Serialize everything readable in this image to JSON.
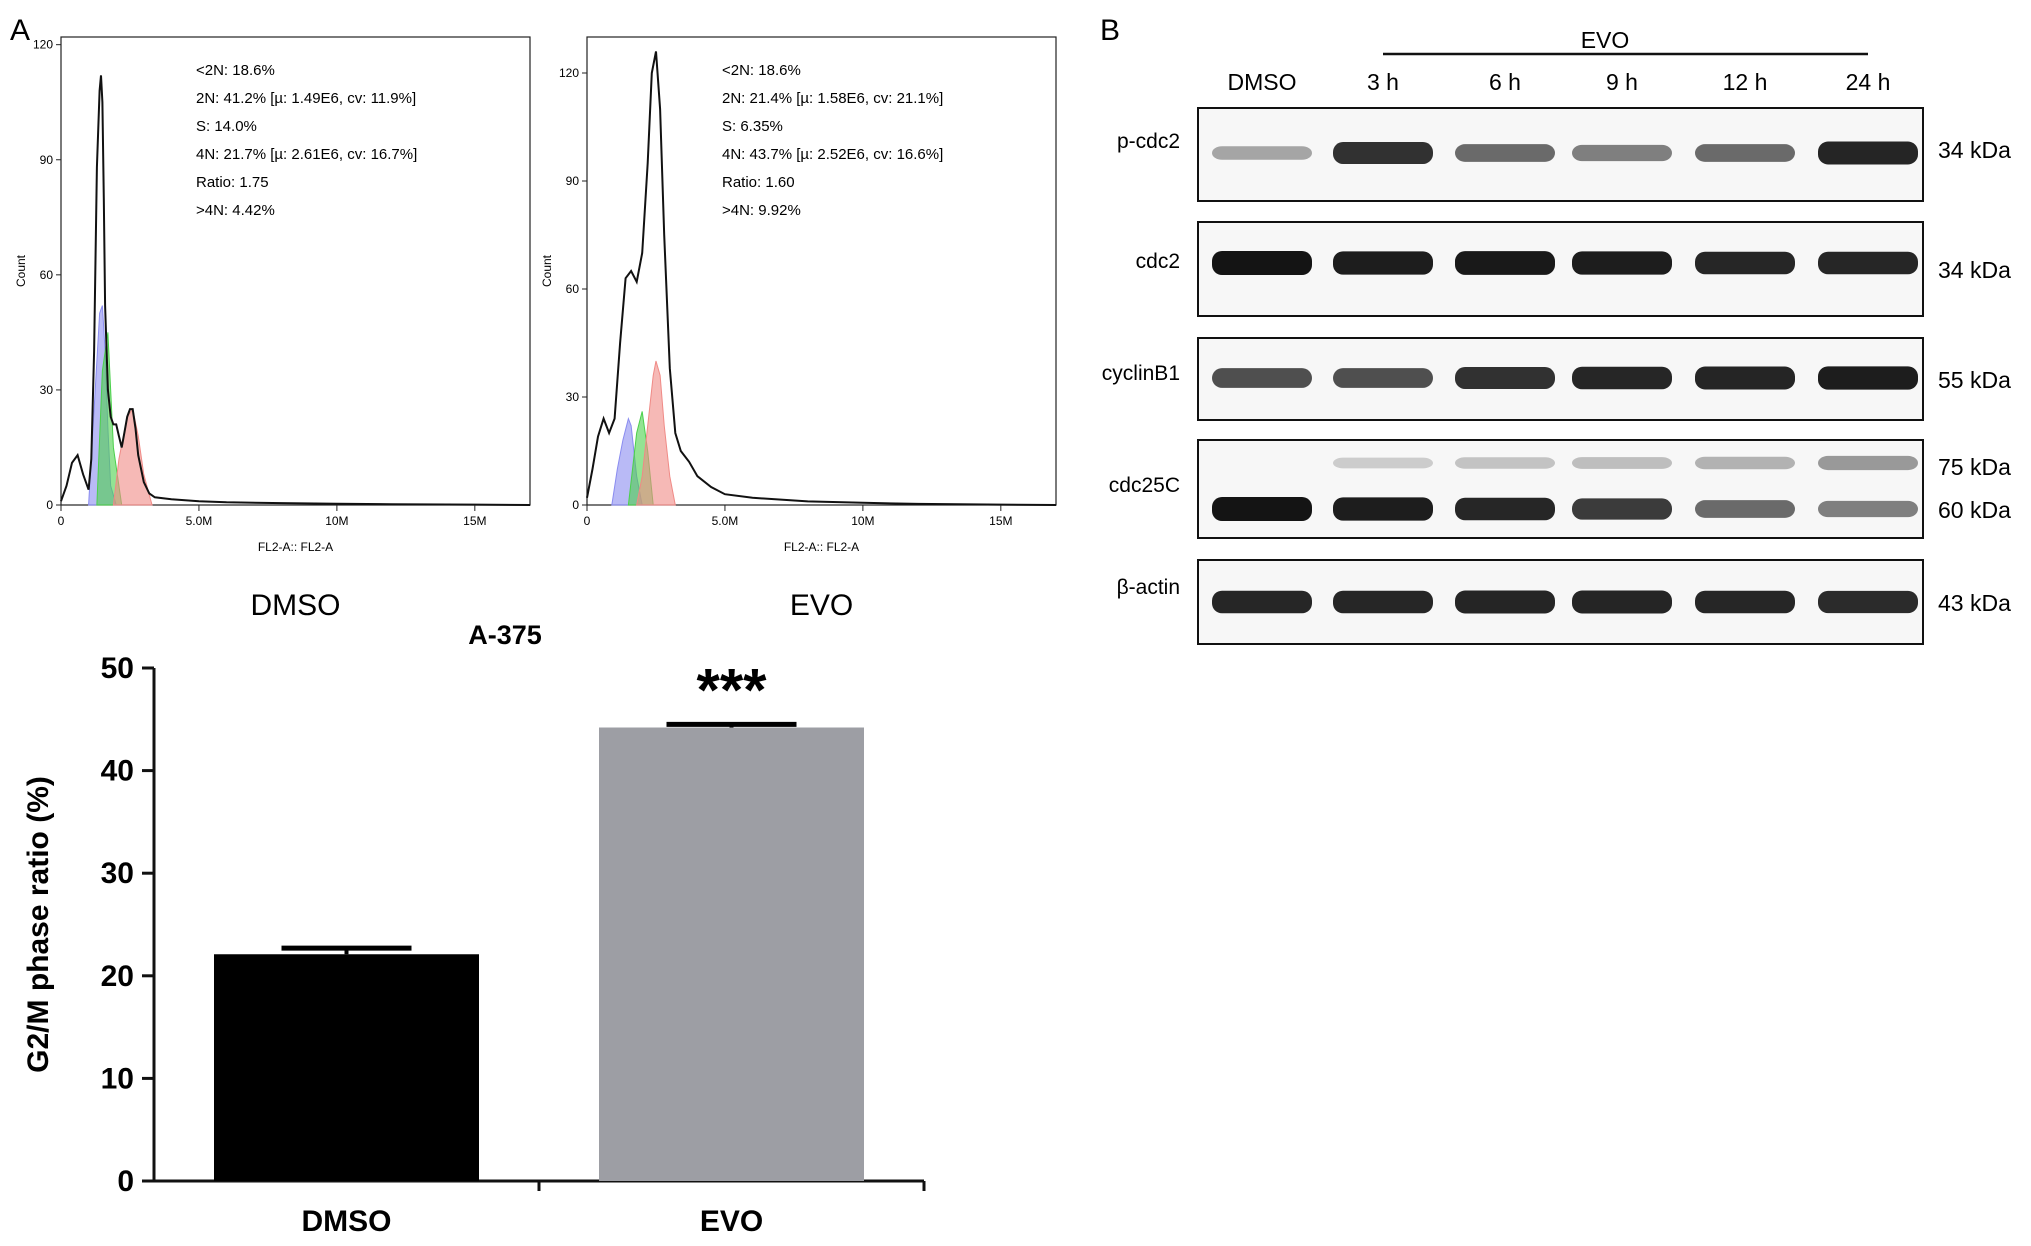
{
  "panel_labels": {
    "a": "A",
    "b": "B"
  },
  "colors": {
    "g1": "#8a8cf0",
    "s": "#4bd04b",
    "g2m": "#f08a86",
    "evo_bar": "#9d9ea4",
    "dmso_bar": "#000000"
  },
  "chart_data": [
    {
      "type": "area",
      "id": "hist-dmso",
      "caption": "DMSO",
      "xlabel": "FL2-A:: FL2-A",
      "ylabel": "Count",
      "xlim": [
        0,
        17000000
      ],
      "ylim": [
        0,
        122
      ],
      "x_ticks": [
        "0",
        "5.0M",
        "10M",
        "15M"
      ],
      "y_ticks": [
        "0",
        "30",
        "60",
        "90",
        "120"
      ],
      "stats": [
        "<2N: 18.6%",
        "2N: 41.2%   [µ: 1.49E6, cv: 11.9%]",
        "S: 14.0%",
        "4N: 21.7%   [µ: 2.61E6, cv: 16.7%]",
        "Ratio: 1.75",
        ">4N: 4.42%"
      ],
      "total": {
        "x": [
          0,
          200000,
          400000,
          600000,
          800000,
          1000000,
          1100000,
          1200000,
          1300000,
          1400000,
          1450000,
          1500000,
          1550000,
          1600000,
          1700000,
          1800000,
          1900000,
          2000000,
          2100000,
          2200000,
          2300000,
          2400000,
          2500000,
          2600000,
          2700000,
          2800000,
          3000000,
          3200000,
          3400000,
          4000000,
          5000000,
          6000000,
          8000000,
          10000000,
          12000000,
          15000000,
          17000000
        ],
        "y": [
          1,
          5,
          11,
          13,
          8,
          4,
          12,
          40,
          88,
          108,
          112,
          105,
          80,
          52,
          30,
          23,
          21,
          21,
          18,
          15,
          19,
          23,
          25,
          25,
          20,
          13,
          6,
          3,
          2,
          1.5,
          1,
          0.7,
          0.5,
          0.3,
          0.2,
          0.1,
          0
        ]
      },
      "components": [
        {
          "phase": "G1",
          "x": [
            1000000,
            1200000,
            1400000,
            1500000,
            1600000,
            1700000,
            1800000,
            2000000
          ],
          "y": [
            0,
            25,
            50,
            52,
            40,
            20,
            5,
            0
          ]
        },
        {
          "phase": "S",
          "x": [
            1300000,
            1500000,
            1700000,
            1900000,
            2000000,
            2200000
          ],
          "y": [
            0,
            35,
            45,
            15,
            10,
            0
          ]
        },
        {
          "phase": "G2/M",
          "x": [
            1900000,
            2100000,
            2400000,
            2600000,
            2800000,
            3000000,
            3300000
          ],
          "y": [
            0,
            12,
            23,
            25,
            18,
            8,
            0
          ]
        }
      ]
    },
    {
      "type": "area",
      "id": "hist-evo",
      "caption": "EVO",
      "xlabel": "FL2-A:: FL2-A",
      "ylabel": "Count",
      "xlim": [
        0,
        17000000
      ],
      "ylim": [
        0,
        130
      ],
      "x_ticks": [
        "0",
        "5.0M",
        "10M",
        "15M"
      ],
      "y_ticks": [
        "0",
        "30",
        "60",
        "90",
        "120"
      ],
      "stats": [
        "<2N: 18.6%",
        "2N: 21.4%   [µ: 1.58E6, cv: 21.1%]",
        "S: 6.35%",
        "4N: 43.7%   [µ: 2.52E6, cv: 16.6%]",
        "Ratio: 1.60",
        ">4N: 9.92%"
      ],
      "total": {
        "x": [
          0,
          200000,
          400000,
          600000,
          800000,
          1000000,
          1200000,
          1400000,
          1600000,
          1800000,
          2000000,
          2200000,
          2350000,
          2500000,
          2650000,
          2800000,
          3000000,
          3200000,
          3400000,
          3700000,
          4000000,
          4500000,
          5000000,
          6000000,
          8000000,
          10000000,
          12000000,
          15000000,
          17000000
        ],
        "y": [
          2,
          10,
          19,
          24,
          20,
          24,
          45,
          63,
          65,
          62,
          70,
          95,
          120,
          126,
          110,
          75,
          38,
          20,
          15,
          12,
          8,
          5,
          3,
          2,
          1,
          0.6,
          0.3,
          0.1,
          0
        ]
      },
      "components": [
        {
          "phase": "G1",
          "x": [
            900000,
            1100000,
            1300000,
            1500000,
            1600000,
            1800000,
            2000000
          ],
          "y": [
            0,
            10,
            18,
            24,
            22,
            8,
            0
          ]
        },
        {
          "phase": "S",
          "x": [
            1500000,
            1800000,
            2000000,
            2200000,
            2400000
          ],
          "y": [
            0,
            20,
            26,
            15,
            0
          ]
        },
        {
          "phase": "G2/M",
          "x": [
            1800000,
            2000000,
            2200000,
            2400000,
            2500000,
            2650000,
            2800000,
            3000000,
            3200000
          ],
          "y": [
            0,
            8,
            22,
            36,
            40,
            36,
            22,
            8,
            0
          ]
        }
      ]
    },
    {
      "type": "bar",
      "id": "bar-g2m",
      "title": "A-375",
      "ylabel": "G2/M phase ratio (%)",
      "categories": [
        "DMSO",
        "EVO"
      ],
      "values": [
        22.1,
        44.2
      ],
      "errors": [
        0.6,
        0.3
      ],
      "ylim": [
        0,
        50
      ],
      "y_ticks": [
        "0",
        "10",
        "20",
        "30",
        "40",
        "50"
      ],
      "annotation": "***"
    }
  ],
  "western_blot": {
    "group_label": "EVO",
    "lanes": [
      "DMSO",
      "3 h",
      "6 h",
      "9 h",
      "12 h",
      "24 h"
    ],
    "rows": [
      {
        "label": "p-cdc2",
        "markers": [
          "34 kDa"
        ],
        "bands": [
          {
            "intensity": [
              0.25,
              0.85,
              0.55,
              0.45,
              0.55,
              0.92
            ]
          }
        ]
      },
      {
        "label": "cdc2",
        "markers": [
          "34 kDa"
        ],
        "bands": [
          {
            "intensity": [
              1.0,
              0.95,
              0.98,
              0.95,
              0.9,
              0.9
            ]
          }
        ]
      },
      {
        "label": "cyclinB1",
        "markers": [
          "55 kDa"
        ],
        "bands": [
          {
            "intensity": [
              0.7,
              0.7,
              0.85,
              0.9,
              0.92,
              0.95
            ]
          }
        ]
      },
      {
        "label": "cdc25C",
        "markers": [
          "75 kDa",
          "60 kDa"
        ],
        "bands": [
          {
            "intensity": [
              0.0,
              0.05,
              0.1,
              0.12,
              0.18,
              0.3
            ]
          },
          {
            "intensity": [
              1.0,
              0.95,
              0.9,
              0.8,
              0.55,
              0.45
            ]
          }
        ]
      },
      {
        "label": "β-actin",
        "markers": [
          "43 kDa"
        ],
        "bands": [
          {
            "intensity": [
              0.9,
              0.9,
              0.92,
              0.92,
              0.9,
              0.88
            ]
          }
        ]
      }
    ]
  }
}
